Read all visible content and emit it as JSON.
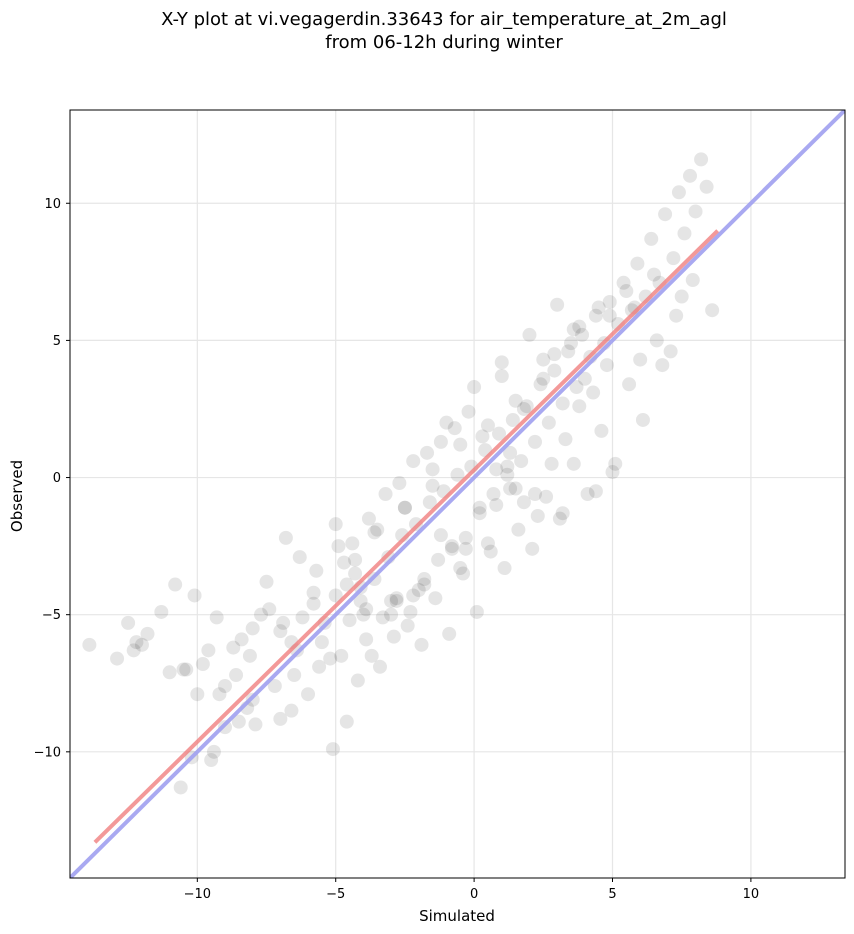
{
  "title_line1": "X-Y plot at vi.vegagerdin.33643 for air_temperature_at_2m_agl",
  "title_line2": "from 06-12h during winter",
  "chart_data": {
    "type": "scatter",
    "title": "X-Y plot at vi.vegagerdin.33643 for air_temperature_at_2m_agl\nfrom 06-12h during winter",
    "xlabel": "Simulated",
    "ylabel": "Observed",
    "xlim": [
      -14.6,
      13.4
    ],
    "ylim": [
      -14.6,
      13.4
    ],
    "xticks": [
      -10,
      -5,
      0,
      5,
      10
    ],
    "yticks": [
      -10,
      -5,
      0,
      5,
      10
    ],
    "xtick_labels": [
      "−10",
      "−5",
      "0",
      "5",
      "10"
    ],
    "ytick_labels": [
      "−10",
      "−5",
      "0",
      "5",
      "10"
    ],
    "grid": true,
    "marker_color": "#000000",
    "marker_alpha": 0.1,
    "fit_line": {
      "name": "regression",
      "color": "#f08080",
      "x": [
        -13.7,
        8.8
      ],
      "y": [
        -13.3,
        9.0
      ]
    },
    "identity_line": {
      "name": "1:1",
      "color": "#a0a0f0",
      "x": [
        -14.6,
        13.4
      ],
      "y": [
        -14.6,
        13.4
      ]
    },
    "x": [
      -13.9,
      -12.9,
      -12.5,
      -12.2,
      -11.8,
      -11.3,
      -10.8,
      -10.4,
      -10.1,
      -9.6,
      -9.3,
      -9.0,
      -8.7,
      -8.4,
      -8.1,
      -7.7,
      -7.4,
      -7.0,
      -6.6,
      -6.2,
      -5.8,
      -5.4,
      -5.0,
      -4.6,
      -4.1,
      -3.6,
      -3.1,
      -2.6,
      -2.1,
      -1.6,
      -1.1,
      -0.6,
      -0.1,
      0.4,
      0.9,
      1.4,
      1.9,
      2.4,
      2.9,
      3.4,
      3.9,
      4.4,
      4.9,
      5.4,
      5.9,
      6.4,
      6.9,
      7.4,
      7.8,
      8.2,
      -5.0,
      -4.4,
      -3.8,
      -3.2,
      -2.7,
      -2.2,
      -1.7,
      -1.2,
      -0.7,
      -0.2,
      0.3,
      0.8,
      1.3,
      1.8,
      2.3,
      2.8,
      3.3,
      3.8,
      4.3,
      4.8,
      -12.0,
      -10.5,
      -9.8,
      -9.2,
      -8.6,
      -8.0,
      -7.2,
      -6.4,
      -5.6,
      -4.8,
      -4.5,
      -3.9,
      -3.3,
      -2.8,
      -2.3,
      -1.8,
      -1.3,
      -0.8,
      -0.3,
      0.2,
      0.7,
      1.2,
      1.7,
      2.2,
      2.7,
      3.2,
      3.7,
      4.2,
      4.7,
      5.2,
      5.7,
      6.2,
      6.7,
      7.2,
      7.6,
      8.0,
      8.4,
      -10.0,
      -9.0,
      -8.2,
      -7.0,
      -6.0,
      -5.2,
      -4.2,
      -3.4,
      -2.4,
      -1.4,
      -0.4,
      0.6,
      1.6,
      2.6,
      3.6,
      4.6,
      5.6,
      6.6,
      7.5,
      -4.6,
      -5.1,
      -3.7,
      -2.9,
      -1.9,
      -0.9,
      0.1,
      1.1,
      2.1,
      3.1,
      4.1,
      5.1,
      6.1,
      7.1,
      -7.5,
      -6.8,
      -6.3,
      -5.7,
      -4.9,
      -4.3,
      -3.5,
      -2.5,
      -1.5,
      -0.5,
      0.5,
      1.5,
      2.5,
      3.5,
      4.5,
      5.5,
      6.5,
      -1.0,
      0.0,
      1.0,
      2.0,
      3.0,
      1.2,
      1.5,
      0.8,
      -0.3,
      -2.0,
      -3.0,
      -4.0,
      -5.5,
      -6.5,
      -8.5,
      -9.5,
      -10.2,
      -11.0,
      -12.3,
      1.0,
      2.5,
      3.8,
      4.0,
      6.0,
      7.3,
      8.6,
      -1.5,
      -2.5,
      -3.6,
      -4.7,
      -5.8,
      -6.9,
      -8.0,
      2.2,
      3.2,
      4.4,
      5.0,
      0.5,
      -0.5,
      -1.8,
      -4.1,
      -3.9,
      -4.3,
      -3.0,
      -2.2,
      1.3,
      1.8,
      0.2,
      -0.8,
      2.9,
      3.6,
      4.9,
      5.8,
      -6.6,
      -7.9,
      -9.4,
      -10.6,
      7.9,
      6.8,
      -2.8,
      -1.2
    ],
    "y": [
      -6.1,
      -6.6,
      -5.3,
      -6.0,
      -5.7,
      -4.9,
      -3.9,
      -7.0,
      -4.3,
      -6.3,
      -5.1,
      -7.6,
      -6.2,
      -5.9,
      -6.5,
      -5.0,
      -4.8,
      -5.6,
      -6.0,
      -5.1,
      -4.6,
      -5.3,
      -4.3,
      -3.9,
      -4.5,
      -3.7,
      -2.9,
      -2.1,
      -1.7,
      -0.9,
      -0.5,
      0.1,
      0.4,
      1.0,
      1.6,
      2.1,
      2.6,
      3.4,
      3.9,
      4.6,
      5.2,
      5.9,
      6.4,
      7.1,
      7.8,
      8.7,
      9.6,
      10.4,
      11.0,
      11.6,
      -1.7,
      -2.4,
      -1.5,
      -0.6,
      -0.2,
      0.6,
      0.9,
      1.3,
      1.8,
      2.4,
      1.5,
      0.3,
      -0.4,
      -0.9,
      -1.4,
      0.5,
      1.4,
      2.6,
      3.1,
      4.1,
      -6.1,
      -7.0,
      -6.8,
      -7.9,
      -7.2,
      -8.1,
      -7.6,
      -6.3,
      -6.9,
      -6.5,
      -5.2,
      -5.9,
      -5.1,
      -4.5,
      -4.9,
      -3.7,
      -3.0,
      -2.6,
      -2.2,
      -1.1,
      -0.6,
      0.1,
      0.6,
      1.3,
      2.0,
      2.7,
      3.3,
      4.4,
      4.9,
      5.6,
      6.1,
      6.6,
      7.1,
      8.0,
      8.9,
      9.7,
      10.6,
      -7.9,
      -9.1,
      -8.4,
      -8.8,
      -7.9,
      -6.6,
      -7.4,
      -6.9,
      -5.4,
      -4.4,
      -3.5,
      -2.7,
      -1.9,
      -0.7,
      0.5,
      1.7,
      3.4,
      5.0,
      6.6,
      -8.9,
      -9.9,
      -6.5,
      -5.8,
      -6.1,
      -5.7,
      -4.9,
      -3.3,
      -2.6,
      -1.5,
      -0.6,
      0.5,
      2.1,
      4.6,
      -3.8,
      -2.2,
      -2.9,
      -3.4,
      -2.5,
      -3.0,
      -1.9,
      -1.1,
      0.3,
      1.2,
      1.9,
      2.8,
      3.6,
      4.9,
      6.2,
      6.8,
      7.4,
      2.0,
      3.3,
      4.2,
      5.2,
      6.3,
      0.4,
      -0.4,
      -1.0,
      -2.6,
      -4.1,
      -4.5,
      -5.0,
      -6.0,
      -7.2,
      -8.9,
      -10.3,
      -10.2,
      -7.1,
      -6.3,
      3.7,
      4.3,
      5.5,
      3.6,
      4.3,
      5.9,
      6.1,
      -0.3,
      -1.1,
      -2.0,
      -3.1,
      -4.2,
      -5.3,
      -5.5,
      -0.6,
      -1.3,
      -0.5,
      0.2,
      -2.4,
      -3.3,
      -3.9,
      -4.0,
      -4.8,
      -3.5,
      -5.0,
      -4.3,
      0.9,
      2.5,
      -1.3,
      -2.5,
      4.5,
      5.4,
      5.9,
      6.2,
      -8.5,
      -9.0,
      -10.0,
      -11.3,
      7.2,
      4.1,
      -4.4,
      -2.1
    ]
  }
}
